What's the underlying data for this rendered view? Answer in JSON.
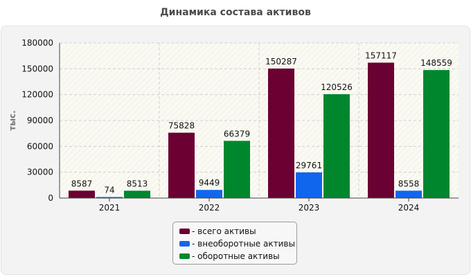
{
  "chart_data": {
    "type": "bar",
    "title": "Динамика состава активов",
    "ylabel": "тыс.",
    "xlabel": "",
    "ylim": [
      0,
      180000
    ],
    "yticks": [
      "0",
      "30000",
      "60000",
      "90000",
      "120000",
      "150000",
      "180000"
    ],
    "categories": [
      "2021",
      "2022",
      "2023",
      "2024"
    ],
    "series": [
      {
        "name": "- всего активы",
        "color": "#6b0032",
        "values": [
          8587,
          75828,
          150287,
          157117
        ]
      },
      {
        "name": "- внеоборотные активы",
        "color": "#1166ee",
        "values": [
          74,
          9449,
          29761,
          8558
        ]
      },
      {
        "name": "- оборотные активы",
        "color": "#00872e",
        "values": [
          8513,
          66379,
          120526,
          148559
        ]
      }
    ],
    "grid": true,
    "legend": "bottom-center"
  }
}
